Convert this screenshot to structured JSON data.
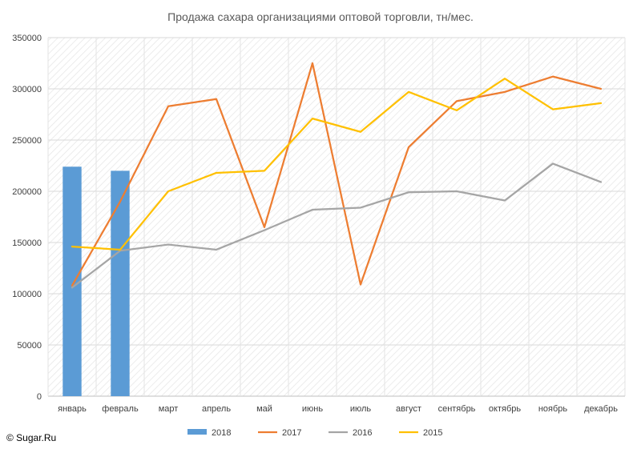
{
  "chart_data": {
    "type": "bar+line",
    "title": "Продажа сахара организациями оптовой торговли, тн/мес.",
    "categories": [
      "январь",
      "февраль",
      "март",
      "апрель",
      "май",
      "июнь",
      "июль",
      "август",
      "сентябрь",
      "октябрь",
      "ноябрь",
      "декабрь"
    ],
    "ylim": [
      0,
      350000
    ],
    "yticks": [
      "0",
      "50000",
      "100000",
      "150000",
      "200000",
      "250000",
      "300000",
      "350000"
    ],
    "grid": true,
    "legend_position": "bottom",
    "series": [
      {
        "name": "2018",
        "kind": "bar",
        "color": "#5B9BD5",
        "values": [
          224000,
          220000,
          null,
          null,
          null,
          null,
          null,
          null,
          null,
          null,
          null,
          null
        ]
      },
      {
        "name": "2017",
        "kind": "line",
        "color": "#ED7D31",
        "values": [
          108000,
          190000,
          283000,
          290000,
          165000,
          325000,
          109000,
          243000,
          288000,
          297000,
          312000,
          300000
        ]
      },
      {
        "name": "2016",
        "kind": "line",
        "color": "#A5A5A5",
        "values": [
          106000,
          142000,
          148000,
          143000,
          162000,
          182000,
          184000,
          199000,
          200000,
          191000,
          227000,
          209000
        ]
      },
      {
        "name": "2015",
        "kind": "line",
        "color": "#FFC000",
        "values": [
          146000,
          143000,
          200000,
          218000,
          220000,
          271000,
          258000,
          297000,
          279000,
          310000,
          280000,
          286000
        ]
      }
    ]
  },
  "copyright": "© Sugar.Ru"
}
